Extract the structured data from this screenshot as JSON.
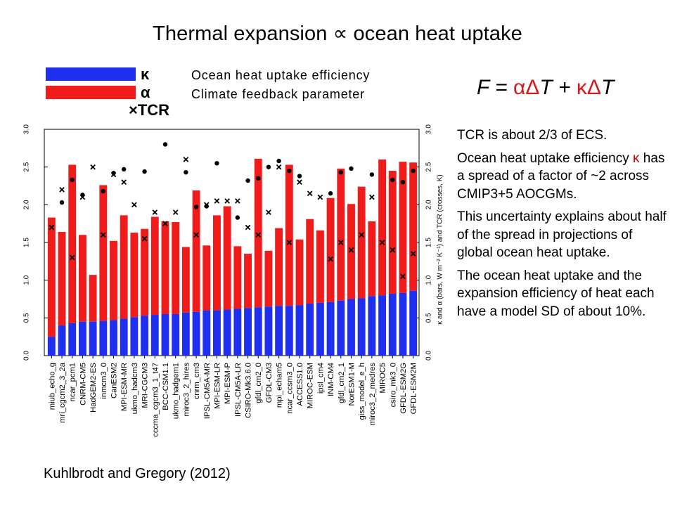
{
  "title": "Thermal expansion ∝ ocean heat uptake",
  "legend": {
    "kappa_symbol": "κ",
    "alpha_symbol": "α",
    "tcr_label": "×TCR",
    "kappa_label": "Ocean heat uptake efficiency",
    "alpha_label": "Climate feedback parameter"
  },
  "formula": {
    "lhs": "F = ",
    "term1_sym": "αΔ",
    "term1_var": "T + ",
    "term2_sym": "κΔ",
    "term2_var": "T"
  },
  "notes": {
    "p1": "TCR is about 2/3 of ECS.",
    "p2_a": "Ocean heat uptake efficiency ",
    "p2_kappa": "κ",
    "p2_b": " has a spread of a factor of ~2 across CMIP3+5 AOCGMs.",
    "p3": "This uncertainty explains about half of the spread in projections of global ocean heat uptake.",
    "p4": "The ocean heat uptake and the expansion efficiency of heat each have a model SD of about 10%."
  },
  "citation": "Kuhlbrodt and Gregory (2012)",
  "colors": {
    "kappa": "#1f2ff0",
    "alpha": "#f01b1b",
    "marker": "#000000"
  },
  "chart_data": {
    "type": "bar",
    "stacked": true,
    "ylim": [
      0,
      3.0
    ],
    "yticks": [
      "0.0",
      "0.5",
      "1.0",
      "1.5",
      "2.0",
      "2.5",
      "3.0"
    ],
    "ylabel_right": "κ and α (bars, W m⁻² K⁻¹) and TCR (crosses, K)",
    "categories": [
      "miub_echo_g",
      "mri_cgcm2_3_2a",
      "ncar_pcm1",
      "CNRM-CM5",
      "HadGEM2-ES",
      "inmcm3_0",
      "CanESM2",
      "MPI-ESM-MR",
      "ukmo_hadcm3",
      "MRI-CGCM3",
      "cccma_cgcm3_1_t47",
      "BCC-CSM1.1",
      "ukmo_hadgem1",
      "miroc3_2_hires",
      "cnrm_cm3",
      "IPSL-CM5A-MR",
      "MPI-ESM-LR",
      "MPI-ESM-P",
      "IPSL-CM5A-LR",
      "CSIRO-Mk3.6.0",
      "gfdl_cm2_0",
      "GFDL-CM3",
      "mpi_echam5",
      "ncar_ccsm3_0",
      "ACCESS1.0",
      "MIROC-ESM",
      "ipsl_cm4",
      "INM-CM4",
      "gfdl_cm2_1",
      "NorESM1-M",
      "giss_model_e_h",
      "miroc3_2_medres",
      "MIROC5",
      "csiro_mk3_0",
      "GFDL-ESM2G",
      "GFDL-ESM2M"
    ],
    "series": [
      {
        "name": "κ",
        "values": [
          0.25,
          0.4,
          0.43,
          0.45,
          0.45,
          0.46,
          0.47,
          0.49,
          0.51,
          0.53,
          0.54,
          0.55,
          0.55,
          0.57,
          0.58,
          0.6,
          0.6,
          0.61,
          0.62,
          0.63,
          0.64,
          0.65,
          0.66,
          0.66,
          0.67,
          0.69,
          0.7,
          0.71,
          0.73,
          0.75,
          0.76,
          0.79,
          0.8,
          0.82,
          0.83,
          0.86
        ]
      },
      {
        "name": "α",
        "values": [
          1.58,
          1.24,
          2.1,
          1.15,
          0.62,
          1.8,
          1.05,
          1.37,
          1.12,
          1.15,
          1.3,
          1.23,
          1.22,
          0.87,
          1.61,
          0.86,
          1.26,
          1.37,
          0.83,
          0.72,
          1.97,
          0.74,
          1.03,
          1.87,
          0.87,
          1.12,
          0.96,
          1.38,
          1.75,
          1.26,
          1.48,
          0.99,
          1.8,
          1.63,
          1.74,
          1.7
        ]
      }
    ],
    "tcr_crosses": [
      1.7,
      2.2,
      1.3,
      2.1,
      2.5,
      1.6,
      2.4,
      2.3,
      2.0,
      1.55,
      1.9,
      1.75,
      1.9,
      2.6,
      1.6,
      2.0,
      2.05,
      2.05,
      2.05,
      1.7,
      1.6,
      1.9,
      2.5,
      1.5,
      2.3,
      2.15,
      2.1,
      1.28,
      1.5,
      1.4,
      1.6,
      2.1,
      1.5,
      1.4,
      1.05,
      1.35
    ],
    "dots": [
      null,
      2.03,
      2.33,
      2.13,
      null,
      2.18,
      2.42,
      2.47,
      null,
      2.44,
      null,
      2.8,
      null,
      2.43,
      1.97,
      1.98,
      2.55,
      null,
      1.83,
      2.32,
      2.35,
      2.5,
      2.58,
      2.45,
      2.38,
      null,
      null,
      2.15,
      2.43,
      2.48,
      null,
      2.4,
      null,
      2.33,
      2.3,
      2.45
    ]
  }
}
